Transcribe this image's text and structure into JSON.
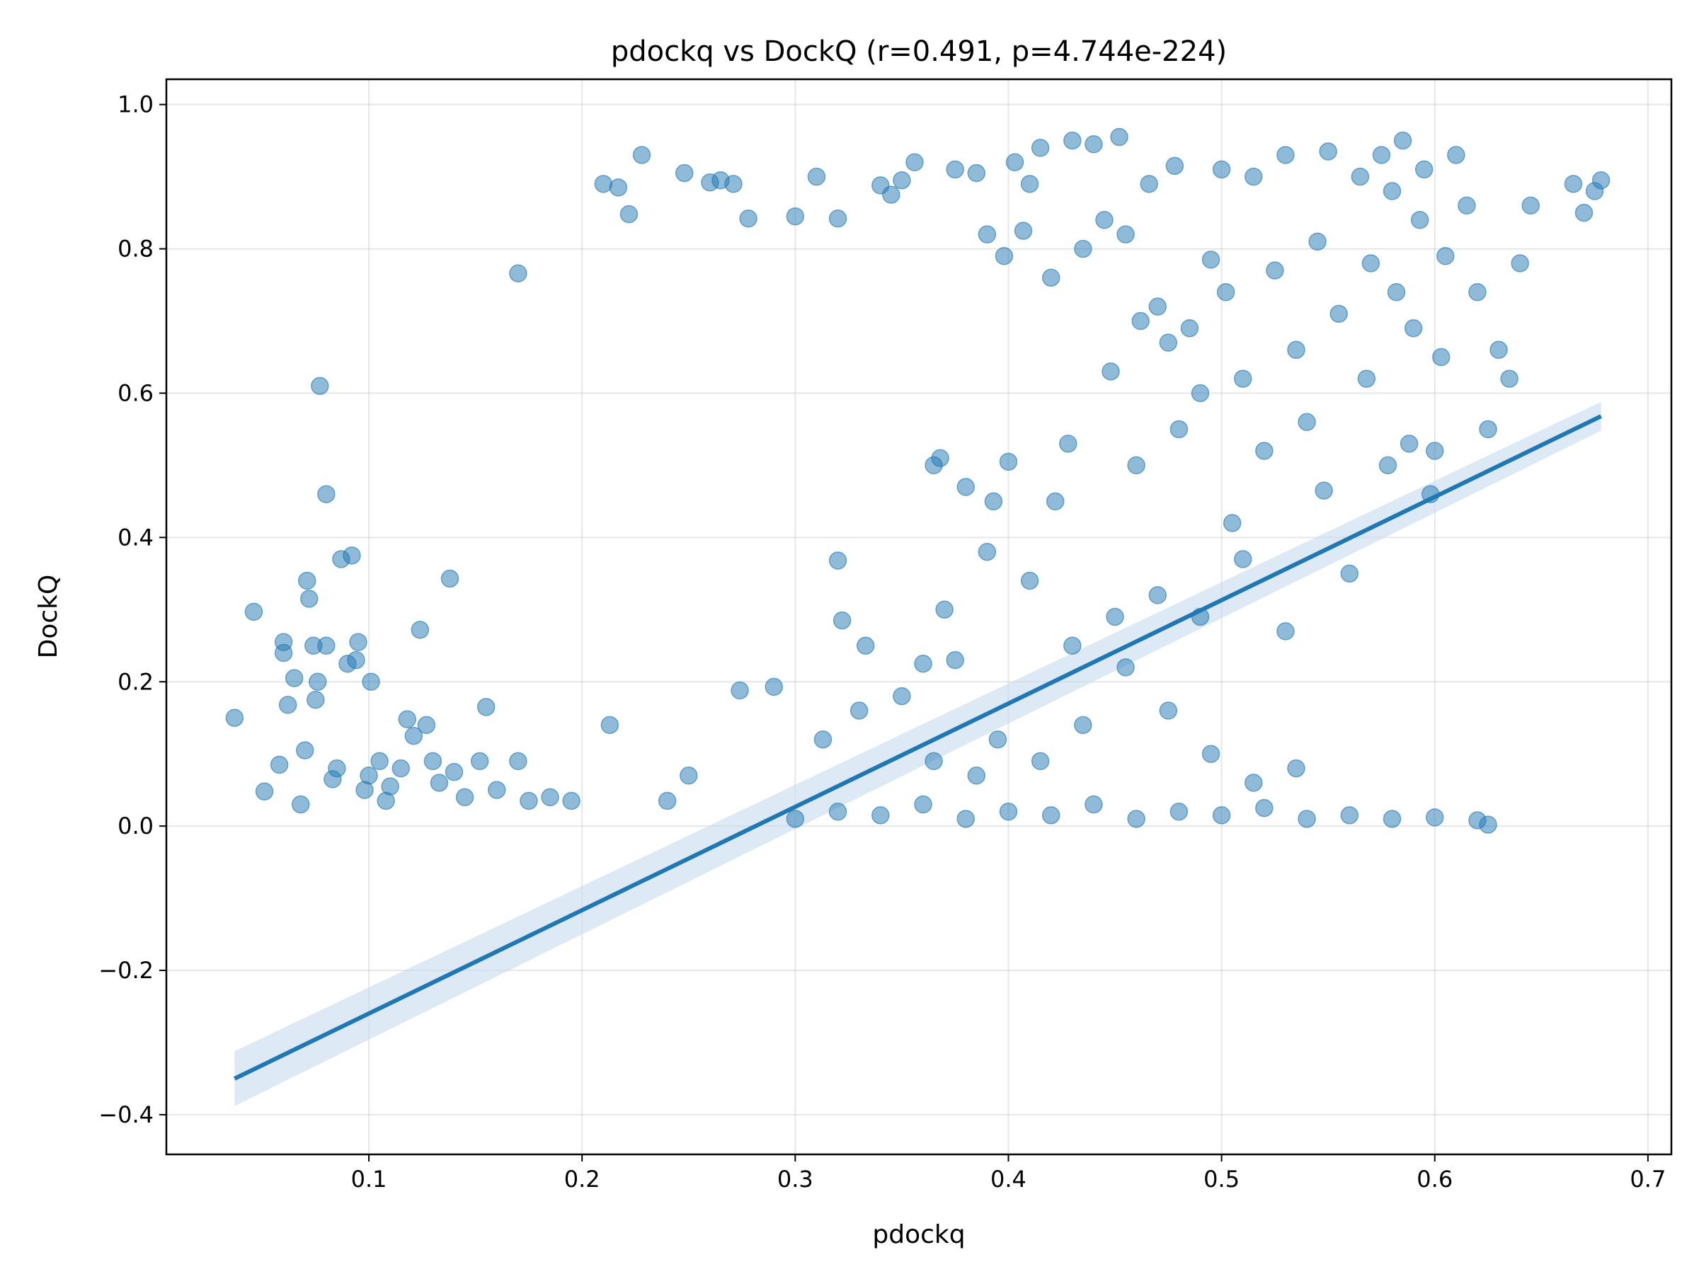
{
  "chart_data": {
    "type": "scatter",
    "title": "pdockq vs DockQ (r=0.491, p=4.744e-224)",
    "xlabel": "pdockq",
    "ylabel": "DockQ",
    "xlim": [
      0.005,
      0.711
    ],
    "ylim": [
      -0.455,
      1.035
    ],
    "x_ticks": [
      0.1,
      0.2,
      0.3,
      0.4,
      0.5,
      0.6,
      0.7
    ],
    "x_tick_labels": [
      "0.1",
      "0.2",
      "0.3",
      "0.4",
      "0.5",
      "0.6",
      "0.7"
    ],
    "y_ticks": [
      -0.4,
      -0.2,
      0.0,
      0.2,
      0.4,
      0.6,
      0.8,
      1.0
    ],
    "y_tick_labels": [
      "−0.4",
      "−0.2",
      "0.0",
      "0.2",
      "0.4",
      "0.6",
      "0.8",
      "1.0"
    ],
    "grid": true,
    "point_color": "#1f77b4",
    "point_alpha": 0.5,
    "regression": {
      "x": [
        0.037,
        0.678
      ],
      "y": [
        -0.35,
        0.568
      ],
      "ci_lower": [
        -0.388,
        0.548
      ],
      "ci_upper": [
        -0.312,
        0.588
      ],
      "color": "#1f77b4",
      "ci_color": "#c6dbef"
    },
    "series": [
      {
        "values": [
          [
            0.037,
            0.15
          ],
          [
            0.046,
            0.297
          ],
          [
            0.051,
            0.048
          ],
          [
            0.058,
            0.085
          ],
          [
            0.06,
            0.24
          ],
          [
            0.06,
            0.255
          ],
          [
            0.062,
            0.168
          ],
          [
            0.065,
            0.205
          ],
          [
            0.068,
            0.03
          ],
          [
            0.07,
            0.105
          ],
          [
            0.071,
            0.34
          ],
          [
            0.072,
            0.315
          ],
          [
            0.074,
            0.25
          ],
          [
            0.075,
            0.175
          ],
          [
            0.076,
            0.2
          ],
          [
            0.077,
            0.61
          ],
          [
            0.08,
            0.25
          ],
          [
            0.08,
            0.46
          ],
          [
            0.083,
            0.065
          ],
          [
            0.085,
            0.08
          ],
          [
            0.087,
            0.37
          ],
          [
            0.09,
            0.225
          ],
          [
            0.092,
            0.375
          ],
          [
            0.094,
            0.23
          ],
          [
            0.095,
            0.255
          ],
          [
            0.098,
            0.05
          ],
          [
            0.1,
            0.07
          ],
          [
            0.101,
            0.2
          ],
          [
            0.105,
            0.09
          ],
          [
            0.108,
            0.035
          ],
          [
            0.11,
            0.055
          ],
          [
            0.115,
            0.08
          ],
          [
            0.118,
            0.148
          ],
          [
            0.121,
            0.125
          ],
          [
            0.124,
            0.272
          ],
          [
            0.127,
            0.14
          ],
          [
            0.13,
            0.09
          ],
          [
            0.133,
            0.06
          ],
          [
            0.138,
            0.343
          ],
          [
            0.14,
            0.075
          ],
          [
            0.145,
            0.04
          ],
          [
            0.152,
            0.09
          ],
          [
            0.155,
            0.165
          ],
          [
            0.16,
            0.05
          ],
          [
            0.17,
            0.766
          ],
          [
            0.17,
            0.09
          ],
          [
            0.175,
            0.035
          ],
          [
            0.185,
            0.04
          ],
          [
            0.195,
            0.035
          ],
          [
            0.21,
            0.89
          ],
          [
            0.213,
            0.14
          ],
          [
            0.217,
            0.885
          ],
          [
            0.222,
            0.848
          ],
          [
            0.228,
            0.93
          ],
          [
            0.24,
            0.035
          ],
          [
            0.248,
            0.905
          ],
          [
            0.25,
            0.07
          ],
          [
            0.26,
            0.892
          ],
          [
            0.265,
            0.895
          ],
          [
            0.271,
            0.89
          ],
          [
            0.274,
            0.188
          ],
          [
            0.278,
            0.842
          ],
          [
            0.29,
            0.193
          ],
          [
            0.3,
            0.845
          ],
          [
            0.31,
            0.9
          ],
          [
            0.313,
            0.12
          ],
          [
            0.32,
            0.842
          ],
          [
            0.32,
            0.368
          ],
          [
            0.322,
            0.285
          ],
          [
            0.33,
            0.16
          ],
          [
            0.333,
            0.25
          ],
          [
            0.34,
            0.888
          ],
          [
            0.345,
            0.875
          ],
          [
            0.35,
            0.895
          ],
          [
            0.356,
            0.92
          ],
          [
            0.36,
            0.225
          ],
          [
            0.365,
            0.5
          ],
          [
            0.368,
            0.51
          ],
          [
            0.375,
            0.91
          ],
          [
            0.38,
            0.47
          ],
          [
            0.385,
            0.905
          ],
          [
            0.39,
            0.82
          ],
          [
            0.393,
            0.45
          ],
          [
            0.398,
            0.79
          ],
          [
            0.4,
            0.505
          ],
          [
            0.403,
            0.92
          ],
          [
            0.407,
            0.825
          ],
          [
            0.41,
            0.89
          ],
          [
            0.415,
            0.94
          ],
          [
            0.42,
            0.76
          ],
          [
            0.422,
            0.45
          ],
          [
            0.428,
            0.53
          ],
          [
            0.43,
            0.95
          ],
          [
            0.435,
            0.8
          ],
          [
            0.44,
            0.945
          ],
          [
            0.445,
            0.84
          ],
          [
            0.448,
            0.63
          ],
          [
            0.452,
            0.955
          ],
          [
            0.455,
            0.82
          ],
          [
            0.46,
            0.5
          ],
          [
            0.462,
            0.7
          ],
          [
            0.466,
            0.89
          ],
          [
            0.47,
            0.72
          ],
          [
            0.475,
            0.67
          ],
          [
            0.478,
            0.915
          ],
          [
            0.48,
            0.55
          ],
          [
            0.485,
            0.69
          ],
          [
            0.49,
            0.6
          ],
          [
            0.495,
            0.785
          ],
          [
            0.5,
            0.91
          ],
          [
            0.502,
            0.74
          ],
          [
            0.505,
            0.42
          ],
          [
            0.51,
            0.62
          ],
          [
            0.515,
            0.9
          ],
          [
            0.52,
            0.52
          ],
          [
            0.525,
            0.77
          ],
          [
            0.53,
            0.93
          ],
          [
            0.535,
            0.66
          ],
          [
            0.54,
            0.56
          ],
          [
            0.545,
            0.81
          ],
          [
            0.548,
            0.465
          ],
          [
            0.55,
            0.935
          ],
          [
            0.555,
            0.71
          ],
          [
            0.56,
            0.35
          ],
          [
            0.565,
            0.9
          ],
          [
            0.568,
            0.62
          ],
          [
            0.57,
            0.78
          ],
          [
            0.575,
            0.93
          ],
          [
            0.578,
            0.5
          ],
          [
            0.58,
            0.88
          ],
          [
            0.582,
            0.74
          ],
          [
            0.585,
            0.95
          ],
          [
            0.588,
            0.53
          ],
          [
            0.59,
            0.69
          ],
          [
            0.593,
            0.84
          ],
          [
            0.595,
            0.91
          ],
          [
            0.598,
            0.46
          ],
          [
            0.6,
            0.52
          ],
          [
            0.603,
            0.65
          ],
          [
            0.605,
            0.79
          ],
          [
            0.61,
            0.93
          ],
          [
            0.615,
            0.86
          ],
          [
            0.62,
            0.74
          ],
          [
            0.625,
            0.55
          ],
          [
            0.63,
            0.66
          ],
          [
            0.635,
            0.62
          ],
          [
            0.64,
            0.78
          ],
          [
            0.645,
            0.86
          ],
          [
            0.665,
            0.89
          ],
          [
            0.67,
            0.85
          ],
          [
            0.675,
            0.88
          ],
          [
            0.678,
            0.895
          ],
          [
            0.3,
            0.01
          ],
          [
            0.32,
            0.02
          ],
          [
            0.34,
            0.015
          ],
          [
            0.36,
            0.03
          ],
          [
            0.38,
            0.01
          ],
          [
            0.4,
            0.02
          ],
          [
            0.42,
            0.015
          ],
          [
            0.44,
            0.03
          ],
          [
            0.46,
            0.01
          ],
          [
            0.48,
            0.02
          ],
          [
            0.5,
            0.015
          ],
          [
            0.52,
            0.025
          ],
          [
            0.54,
            0.01
          ],
          [
            0.56,
            0.015
          ],
          [
            0.58,
            0.01
          ],
          [
            0.6,
            0.012
          ],
          [
            0.62,
            0.008
          ],
          [
            0.625,
            0.002
          ],
          [
            0.35,
            0.18
          ],
          [
            0.37,
            0.3
          ],
          [
            0.39,
            0.38
          ],
          [
            0.41,
            0.34
          ],
          [
            0.43,
            0.25
          ],
          [
            0.45,
            0.29
          ],
          [
            0.47,
            0.32
          ],
          [
            0.49,
            0.29
          ],
          [
            0.51,
            0.37
          ],
          [
            0.53,
            0.27
          ],
          [
            0.375,
            0.23
          ],
          [
            0.395,
            0.12
          ],
          [
            0.415,
            0.09
          ],
          [
            0.435,
            0.14
          ],
          [
            0.455,
            0.22
          ],
          [
            0.475,
            0.16
          ],
          [
            0.495,
            0.1
          ],
          [
            0.515,
            0.06
          ],
          [
            0.535,
            0.08
          ],
          [
            0.365,
            0.09
          ],
          [
            0.385,
            0.07
          ]
        ]
      }
    ]
  }
}
